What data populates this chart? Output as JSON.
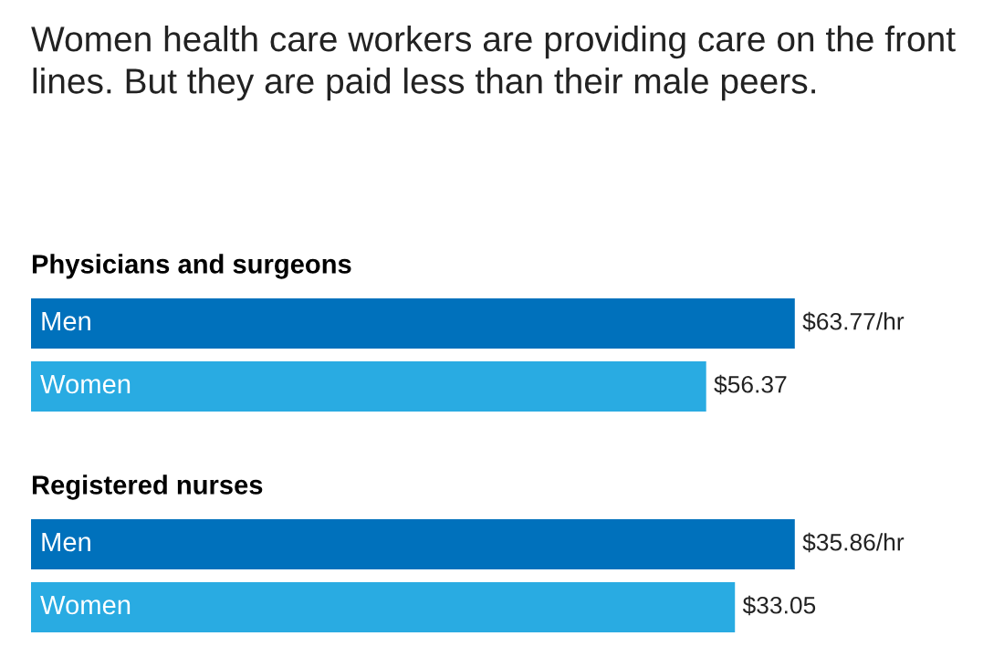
{
  "chart_data": [
    {
      "type": "bar",
      "orientation": "horizontal",
      "title": "Women health care workers are providing care on the front lines. But they are paid less than their male peers.",
      "subtitle": "Physicians and surgeons",
      "categories": [
        "Men",
        "Women"
      ],
      "values": [
        63.77,
        56.37
      ],
      "colors": [
        "#0071bc",
        "#29abe2"
      ],
      "value_labels": [
        "$63.77/hr",
        "$56.37"
      ]
    },
    {
      "type": "bar",
      "orientation": "horizontal",
      "subtitle": "Registered nurses",
      "categories": [
        "Men",
        "Women"
      ],
      "values": [
        35.86,
        33.05
      ],
      "colors": [
        "#0071bc",
        "#29abe2"
      ],
      "value_labels": [
        "$35.86/hr",
        "$33.05"
      ]
    }
  ]
}
